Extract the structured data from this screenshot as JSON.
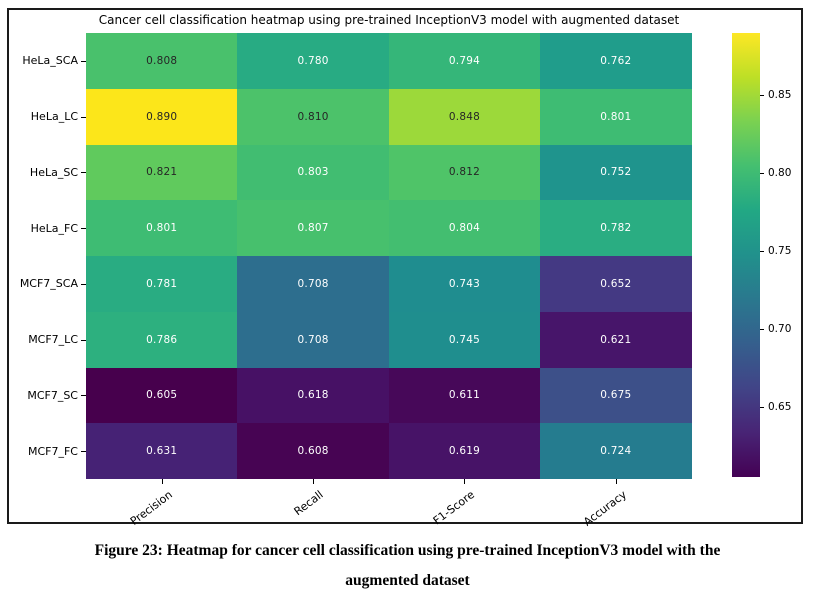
{
  "figure": {
    "caption_line1": "Figure 23: Heatmap for cancer cell classification using pre-trained InceptionV3 model with the",
    "caption_line2": "augmented dataset"
  },
  "chart_data": {
    "type": "heatmap",
    "title": "Cancer cell classification heatmap using pre-trained InceptionV3 model with augmented dataset",
    "rows": [
      "HeLa_SCA",
      "HeLa_LC",
      "HeLa_SC",
      "HeLa_FC",
      "MCF7_SCA",
      "MCF7_LC",
      "MCF7_SC",
      "MCF7_FC"
    ],
    "columns": [
      "Precision",
      "Recall",
      "F1-Score",
      "Accuracy"
    ],
    "values": [
      [
        0.808,
        0.78,
        0.794,
        0.762
      ],
      [
        0.89,
        0.81,
        0.848,
        0.801
      ],
      [
        0.821,
        0.803,
        0.812,
        0.752
      ],
      [
        0.801,
        0.807,
        0.804,
        0.782
      ],
      [
        0.781,
        0.708,
        0.743,
        0.652
      ],
      [
        0.786,
        0.708,
        0.745,
        0.621
      ],
      [
        0.605,
        0.618,
        0.611,
        0.675
      ],
      [
        0.631,
        0.608,
        0.619,
        0.724
      ]
    ],
    "value_decimals": 3,
    "vmin": 0.605,
    "vmax": 0.89,
    "colormap": "viridis",
    "colormap_stops": [
      "#440154",
      "#482475",
      "#414487",
      "#355f8d",
      "#2a788e",
      "#21918c",
      "#22a884",
      "#44bf70",
      "#7ad151",
      "#bddf26",
      "#fde725"
    ],
    "annot_dark_text": [
      [
        true,
        false,
        false,
        false
      ],
      [
        true,
        true,
        true,
        false
      ],
      [
        true,
        false,
        true,
        false
      ],
      [
        false,
        false,
        false,
        false
      ],
      [
        false,
        false,
        false,
        false
      ],
      [
        false,
        false,
        false,
        false
      ],
      [
        false,
        false,
        false,
        false
      ],
      [
        false,
        false,
        false,
        false
      ]
    ],
    "annotation_text_colors": {
      "dark": "#262626",
      "light": "#ffffff"
    },
    "colorbar_ticks": [
      0.85,
      0.8,
      0.75,
      0.7,
      0.65
    ],
    "colorbar_tick_labels": [
      "0.85",
      "0.80",
      "0.75",
      "0.70",
      "0.65"
    ],
    "legend_position": "colorbar-right",
    "grid": false
  }
}
